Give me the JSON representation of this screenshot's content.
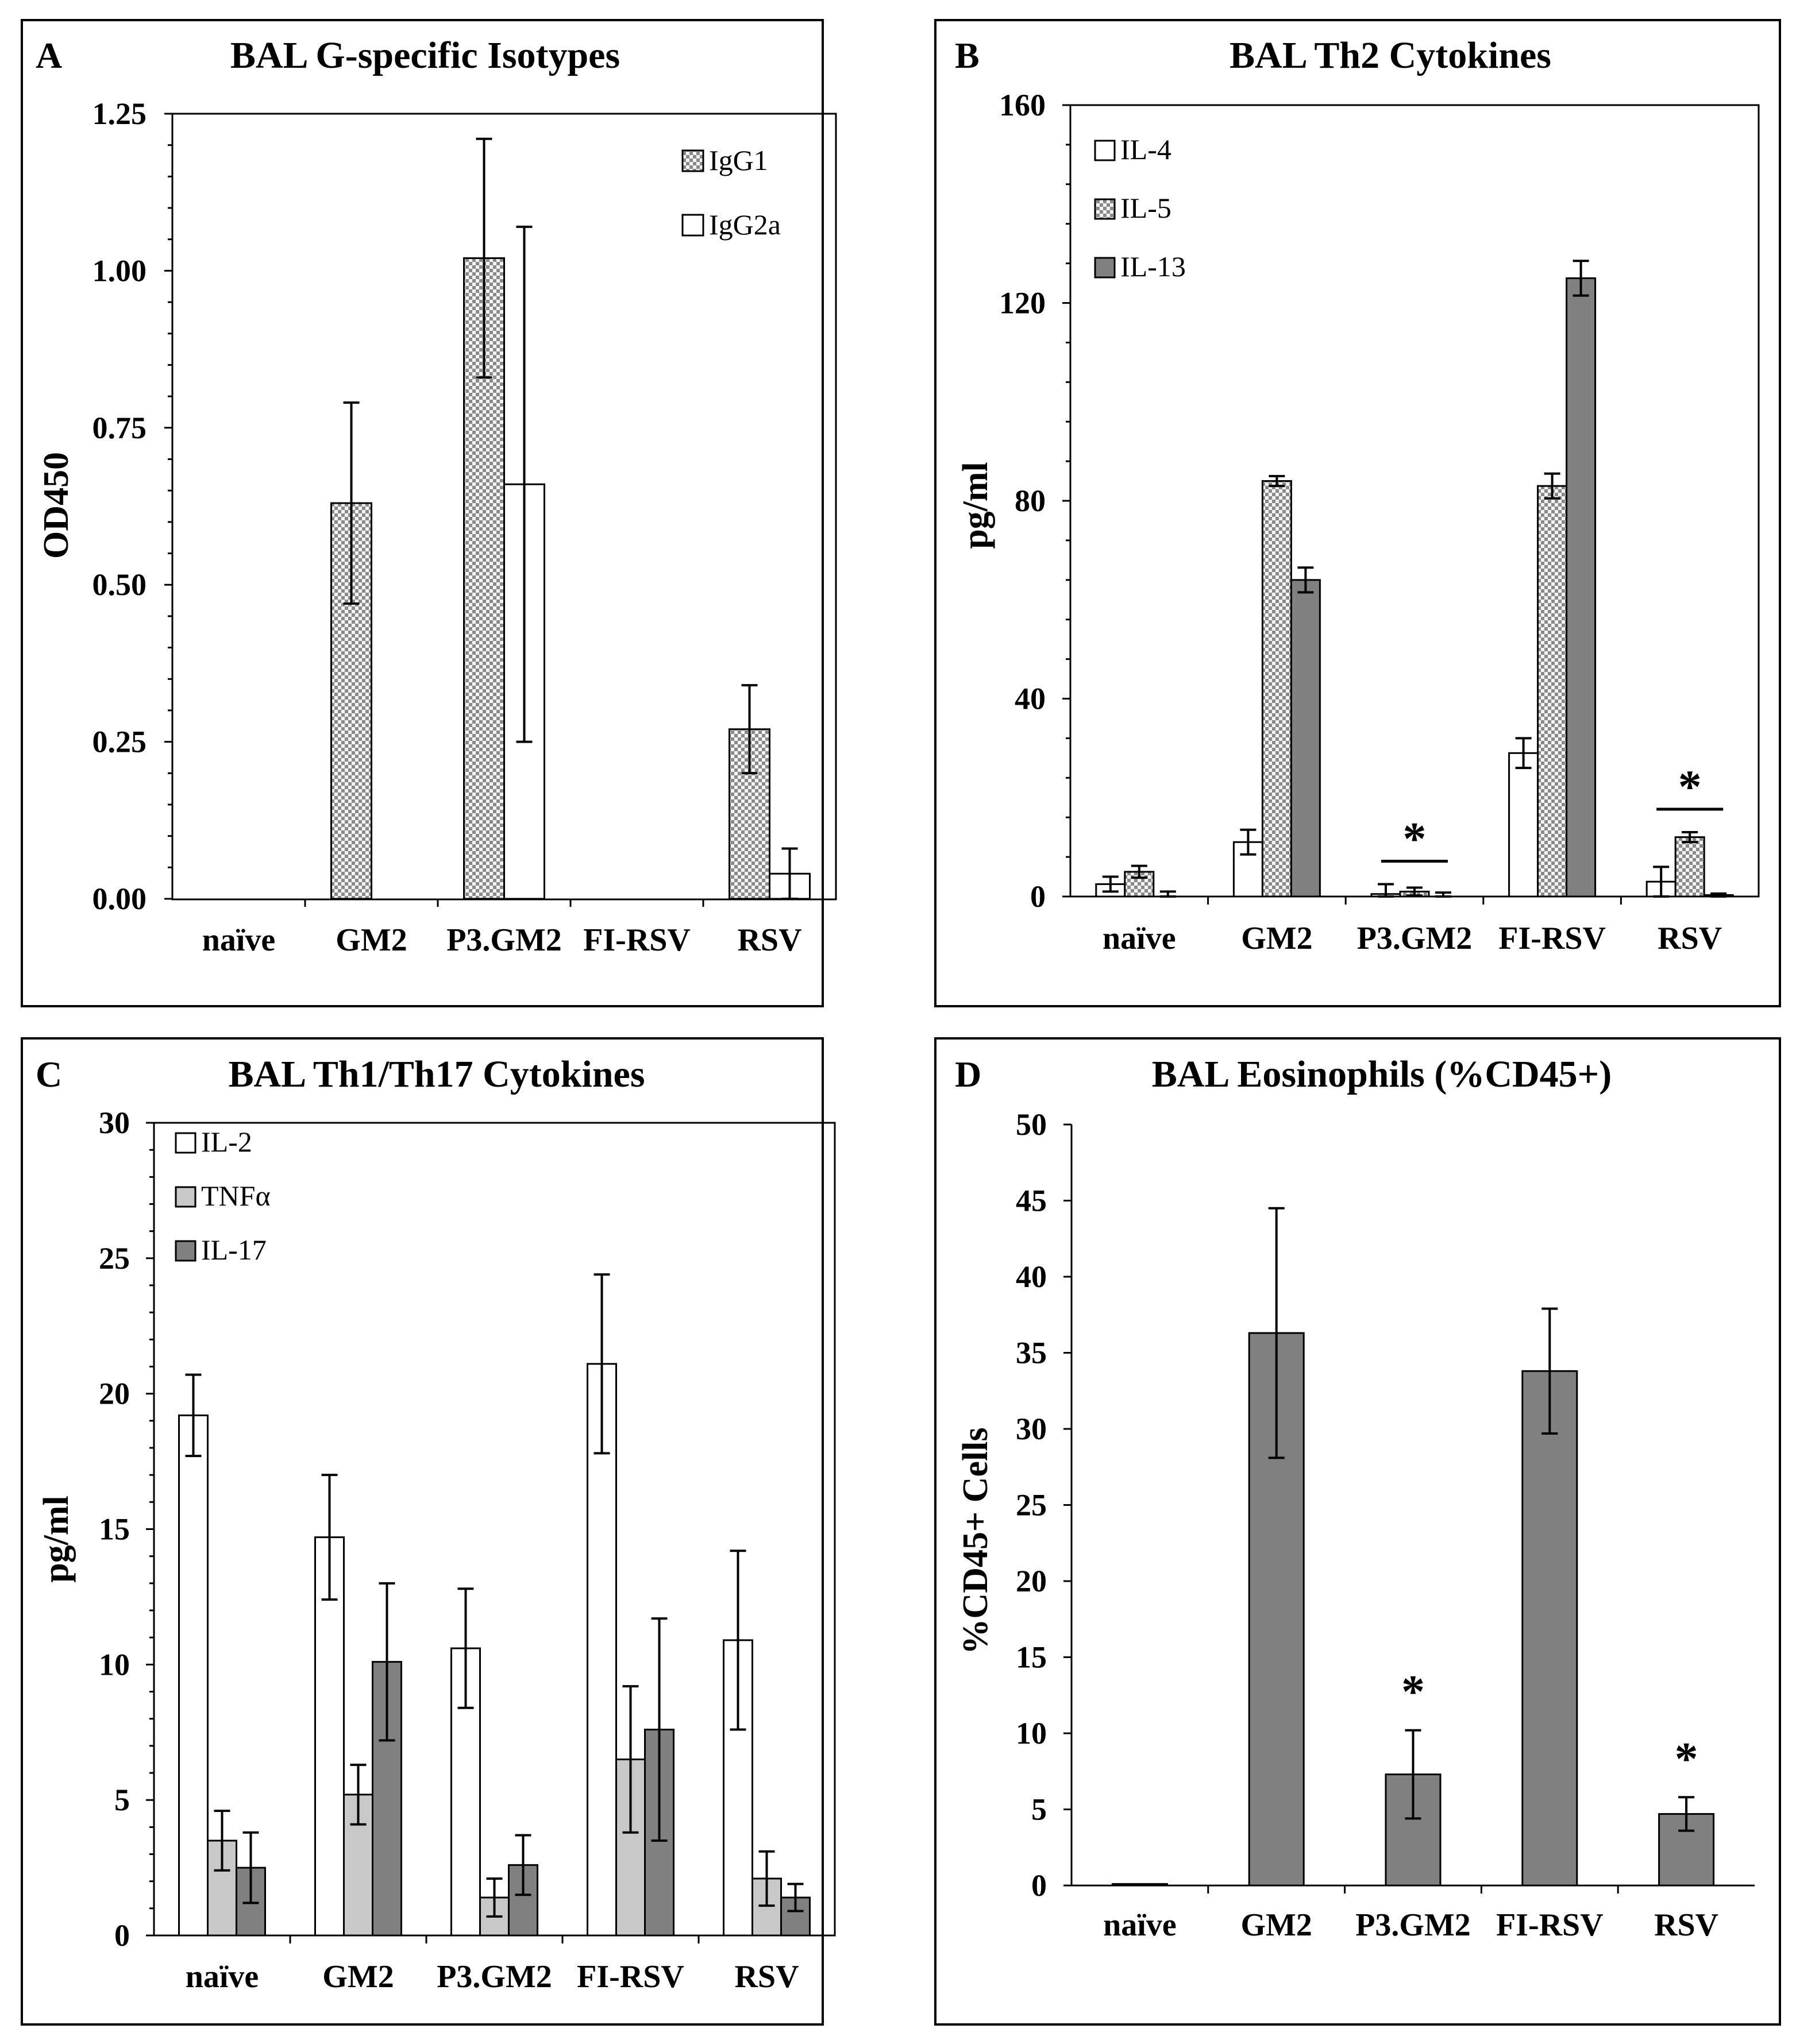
{
  "colors": {
    "white": "#ffffff",
    "checker": "#cfcfcf",
    "light_gray": "#c8c8c8",
    "dark_gray": "#808080"
  },
  "chart_data": [
    {
      "panel_label": "A",
      "type": "bar",
      "title": "BAL G-specific Isotypes",
      "ylabel": "OD450",
      "xlabel": "",
      "ylim": [
        0,
        1.25
      ],
      "yticks": [
        "0.00",
        "0.25",
        "0.50",
        "0.75",
        "1.00",
        "1.25"
      ],
      "categories": [
        "naïve",
        "GM2",
        "P3.GM2",
        "FI-RSV",
        "RSV"
      ],
      "legend_position": "top-right",
      "series": [
        {
          "name": "IgG1",
          "pattern": "checker",
          "values": [
            0,
            0.63,
            1.02,
            0,
            0.27
          ],
          "errors": [
            0,
            0.16,
            0.19,
            0,
            0.07
          ]
        },
        {
          "name": "IgG2a",
          "pattern": "white",
          "values": [
            0,
            0,
            0.66,
            0,
            0.04
          ],
          "errors": [
            0,
            0,
            0.41,
            0,
            0.04
          ]
        }
      ],
      "annotations": []
    },
    {
      "panel_label": "B",
      "type": "bar",
      "title": "BAL Th2 Cytokines",
      "ylabel": "pg/ml",
      "xlabel": "",
      "ylim": [
        0,
        160
      ],
      "yticks": [
        "0",
        "40",
        "80",
        "120",
        "160"
      ],
      "categories": [
        "naïve",
        "GM2",
        "P3.GM2",
        "FI-RSV",
        "RSV"
      ],
      "legend_position": "top-left",
      "series": [
        {
          "name": "IL-4",
          "pattern": "white",
          "values": [
            2.5,
            11,
            0.5,
            29,
            3
          ],
          "errors": [
            1.5,
            2.5,
            2,
            3,
            3
          ]
        },
        {
          "name": "IL-5",
          "pattern": "checker",
          "values": [
            5,
            84,
            1,
            83,
            12
          ],
          "errors": [
            1.2,
            1,
            0.8,
            2.5,
            1
          ]
        },
        {
          "name": "IL-13",
          "pattern": "dark",
          "values": [
            0,
            64,
            0,
            125,
            0.3
          ],
          "errors": [
            1,
            2.5,
            0.8,
            3.5,
            0.3
          ]
        }
      ],
      "annotations": [
        {
          "text": "*",
          "category": "P3.GM2"
        },
        {
          "text": "*",
          "category": "RSV"
        }
      ]
    },
    {
      "panel_label": "C",
      "type": "bar",
      "title": "BAL Th1/Th17 Cytokines",
      "ylabel": "pg/ml",
      "xlabel": "",
      "ylim": [
        0,
        30
      ],
      "yticks": [
        "0",
        "5",
        "10",
        "15",
        "20",
        "25",
        "30"
      ],
      "categories": [
        "naïve",
        "GM2",
        "P3.GM2",
        "FI-RSV",
        "RSV"
      ],
      "legend_position": "top-left",
      "series": [
        {
          "name": "IL-2",
          "pattern": "white",
          "values": [
            19.2,
            14.7,
            10.6,
            21.1,
            10.9
          ],
          "errors": [
            1.5,
            2.3,
            2.2,
            3.3,
            3.3
          ]
        },
        {
          "name": "TNFα",
          "pattern": "light",
          "values": [
            3.5,
            5.2,
            1.4,
            6.5,
            2.1
          ],
          "errors": [
            1.1,
            1.1,
            0.7,
            2.7,
            1
          ]
        },
        {
          "name": "IL-17",
          "pattern": "dark",
          "values": [
            2.5,
            10.1,
            2.6,
            7.6,
            1.4
          ],
          "errors": [
            1.3,
            2.9,
            1.1,
            4.1,
            0.5
          ]
        }
      ],
      "annotations": []
    },
    {
      "panel_label": "D",
      "type": "bar",
      "title": "BAL Eosinophils (%CD45+)",
      "ylabel": "%CD45+ Cells",
      "xlabel": "",
      "ylim": [
        0,
        50
      ],
      "yticks": [
        "0",
        "5",
        "10",
        "15",
        "20",
        "25",
        "30",
        "35",
        "40",
        "45",
        "50"
      ],
      "categories": [
        "naïve",
        "GM2",
        "P3.GM2",
        "FI-RSV",
        "RSV"
      ],
      "legend_position": "none",
      "series": [
        {
          "name": "",
          "pattern": "dark",
          "values": [
            0.1,
            36.3,
            7.3,
            33.8,
            4.7
          ],
          "errors": [
            0,
            8.2,
            2.9,
            4.1,
            1.1
          ]
        }
      ],
      "annotations": [
        {
          "text": "*",
          "category": "P3.GM2"
        },
        {
          "text": "*",
          "category": "RSV"
        }
      ]
    }
  ]
}
